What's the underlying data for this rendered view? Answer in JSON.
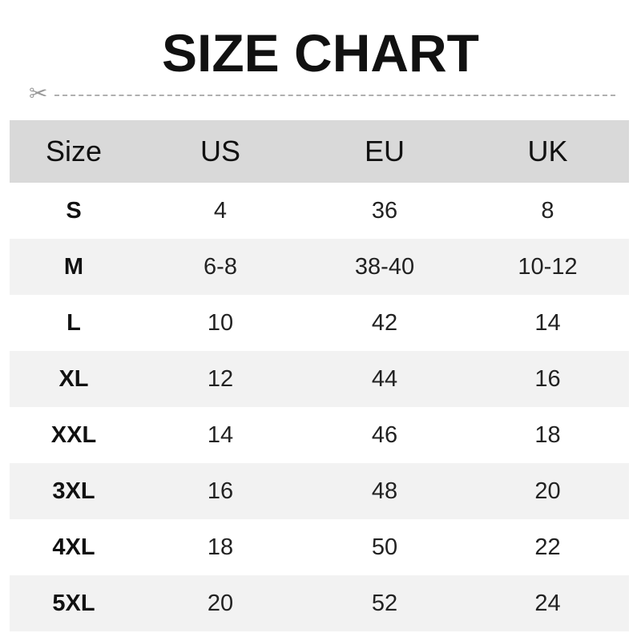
{
  "title": "SIZE CHART",
  "cut_icon": "scissors-icon",
  "table": {
    "headers": [
      "Size",
      "US",
      "EU",
      "UK"
    ],
    "rows": [
      [
        "S",
        "4",
        "36",
        "8"
      ],
      [
        "M",
        "6-8",
        "38-40",
        "10-12"
      ],
      [
        "L",
        "10",
        "42",
        "14"
      ],
      [
        "XL",
        "12",
        "44",
        "16"
      ],
      [
        "XXL",
        "14",
        "46",
        "18"
      ],
      [
        "3XL",
        "16",
        "48",
        "20"
      ],
      [
        "4XL",
        "18",
        "50",
        "22"
      ],
      [
        "5XL",
        "20",
        "52",
        "24"
      ]
    ]
  },
  "colors": {
    "header_bg": "#d9d9d9",
    "alt_row_bg": "#f2f2f2"
  }
}
